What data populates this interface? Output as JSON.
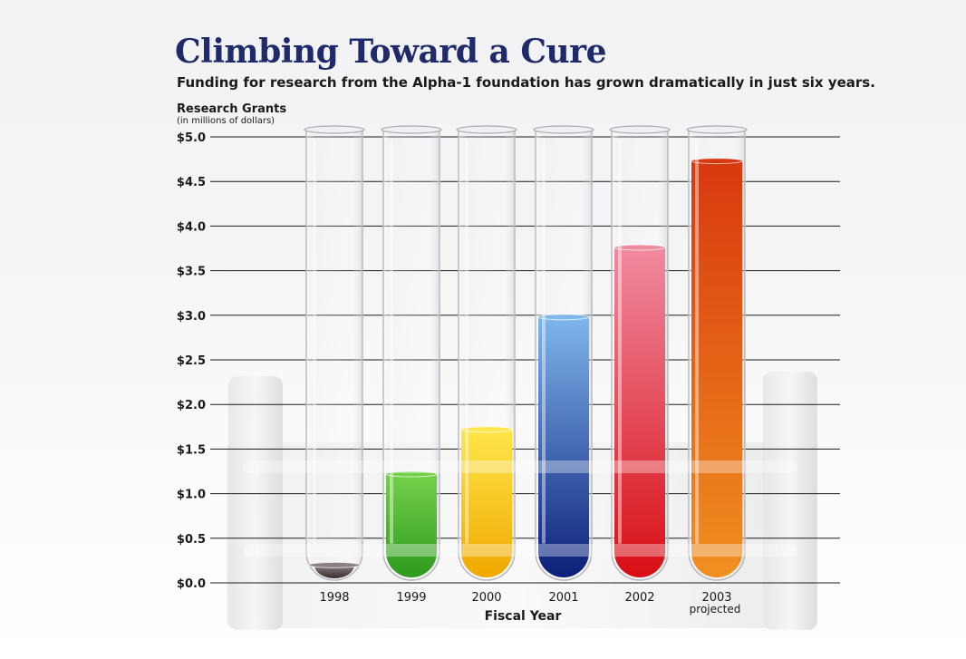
{
  "chart_data": {
    "type": "bar",
    "title": "Climbing Toward a Cure",
    "subtitle": "Funding for research from the Alpha-1 foundation has grown dramatically in just six years.",
    "ylabel": "Research Grants",
    "ylabel_note": "(in millions of dollars)",
    "xlabel": "Fiscal Year",
    "categories": [
      "1998",
      "1999",
      "2000",
      "2001",
      "2002",
      "2003"
    ],
    "category_notes": [
      "",
      "",
      "",
      "",
      "",
      "projected"
    ],
    "values": [
      0.2,
      1.22,
      1.72,
      2.98,
      3.76,
      4.73
    ],
    "ylim": [
      0,
      5
    ],
    "yticks": [
      "$0.0",
      "$0.5",
      "$1.0",
      "$1.5",
      "$2.0",
      "$2.5",
      "$3.0",
      "$3.5",
      "$4.0",
      "$4.5",
      "$5.0"
    ],
    "colors": [
      [
        "#8a7f82",
        "#3a2c30"
      ],
      [
        "#74d04a",
        "#2f9a1e"
      ],
      [
        "#ffe64a",
        "#f0a800"
      ],
      [
        "#7fb6ec",
        "#0c1f7a"
      ],
      [
        "#f08aa0",
        "#d80f14"
      ],
      [
        "#d8380e",
        "#f09020"
      ]
    ],
    "grid": true,
    "legend": "none"
  }
}
